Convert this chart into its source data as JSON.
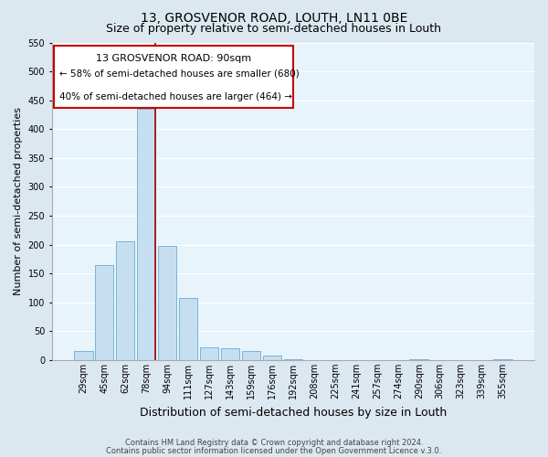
{
  "title": "13, GROSVENOR ROAD, LOUTH, LN11 0BE",
  "subtitle": "Size of property relative to semi-detached houses in Louth",
  "xlabel": "Distribution of semi-detached houses by size in Louth",
  "ylabel": "Number of semi-detached properties",
  "bar_labels": [
    "29sqm",
    "45sqm",
    "62sqm",
    "78sqm",
    "94sqm",
    "111sqm",
    "127sqm",
    "143sqm",
    "159sqm",
    "176sqm",
    "192sqm",
    "208sqm",
    "225sqm",
    "241sqm",
    "257sqm",
    "274sqm",
    "290sqm",
    "306sqm",
    "323sqm",
    "339sqm",
    "355sqm"
  ],
  "bar_values": [
    15,
    165,
    205,
    435,
    198,
    107,
    22,
    20,
    16,
    7,
    1,
    0,
    0,
    0,
    0,
    0,
    1,
    0,
    0,
    0,
    1
  ],
  "bar_color": "#c6dff0",
  "bar_edge_color": "#7ab4d4",
  "property_line_color": "#aa0000",
  "property_line_bar_index": 3,
  "ylim": [
    0,
    550
  ],
  "yticks": [
    0,
    50,
    100,
    150,
    200,
    250,
    300,
    350,
    400,
    450,
    500,
    550
  ],
  "annotation_title": "13 GROSVENOR ROAD: 90sqm",
  "annotation_line1": "← 58% of semi-detached houses are smaller (680)",
  "annotation_line2": "40% of semi-detached houses are larger (464) →",
  "annotation_box_color": "#ffffff",
  "annotation_box_edge": "#cc0000",
  "footer_line1": "Contains HM Land Registry data © Crown copyright and database right 2024.",
  "footer_line2": "Contains public sector information licensed under the Open Government Licence v.3.0.",
  "bg_color": "#dce8f0",
  "plot_bg_color": "#e8f4fc",
  "grid_color": "#ffffff",
  "title_fontsize": 10,
  "subtitle_fontsize": 9,
  "ylabel_fontsize": 8,
  "xlabel_fontsize": 9,
  "tick_fontsize": 7,
  "footer_fontsize": 6,
  "annot_title_fontsize": 8,
  "annot_text_fontsize": 7.5
}
